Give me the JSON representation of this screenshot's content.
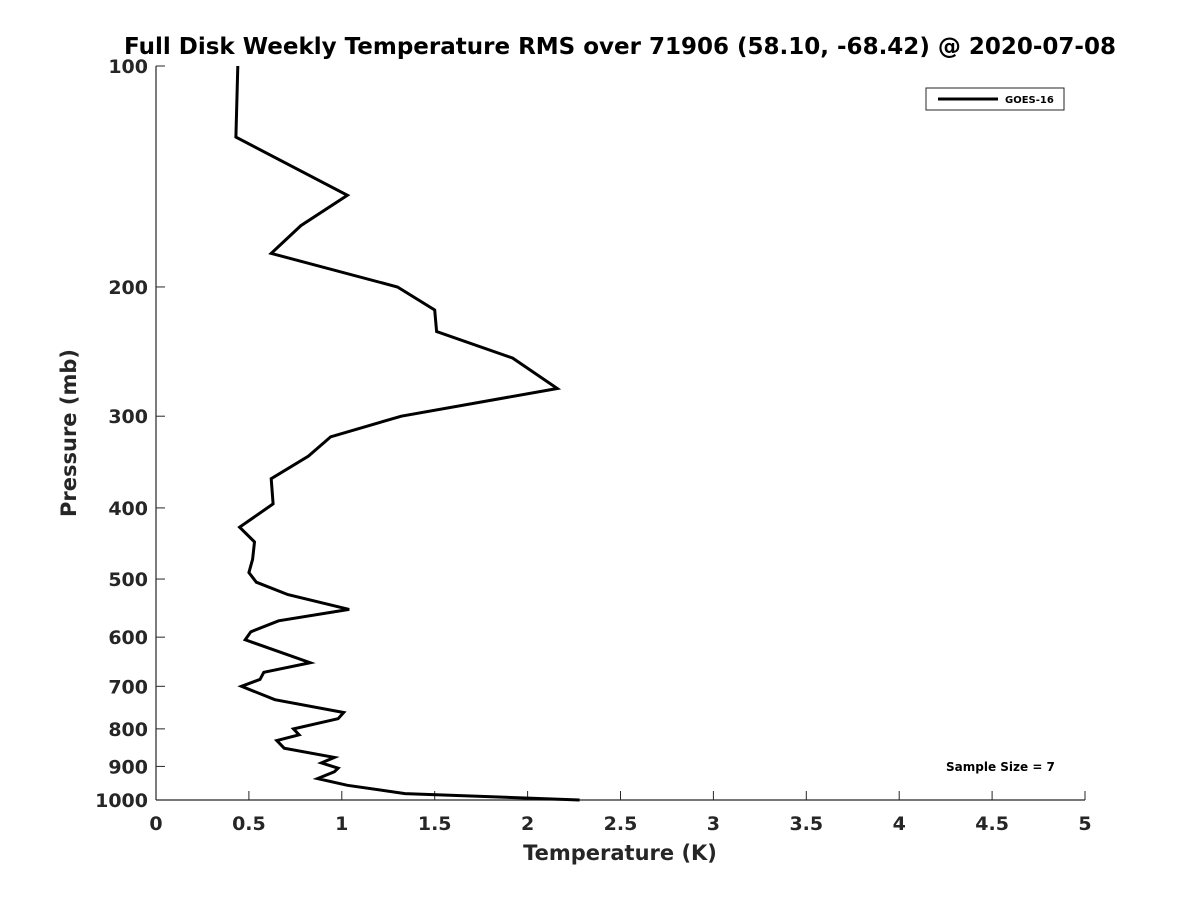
{
  "chart_data": {
    "type": "line",
    "title": "Full Disk Weekly Temperature RMS over 71906 (58.10, -68.42) @ 2020-07-08",
    "xlabel": "Temperature (K)",
    "ylabel": "Pressure (mb)",
    "xlim": [
      0,
      5
    ],
    "ylim": [
      1000,
      100
    ],
    "yscale": "log",
    "y_reversed": true,
    "xticks": [
      0,
      0.5,
      1,
      1.5,
      2,
      2.5,
      3,
      3.5,
      4,
      4.5,
      5
    ],
    "xtick_labels": [
      "0",
      "0.5",
      "1",
      "1.5",
      "2",
      "2.5",
      "3",
      "3.5",
      "4",
      "4.5",
      "5"
    ],
    "yticks": [
      100,
      200,
      300,
      400,
      500,
      600,
      700,
      800,
      900,
      1000
    ],
    "ytick_labels": [
      "100",
      "200",
      "300",
      "400",
      "500",
      "600",
      "700",
      "800",
      "900",
      "1000"
    ],
    "grid": false,
    "legend": {
      "entries": [
        "GOES-16"
      ],
      "placement": "top-right"
    },
    "annotation": "Sample Size = 7",
    "series": [
      {
        "name": "GOES-16",
        "color": "#000000",
        "points": [
          [
            0.44,
            100
          ],
          [
            0.43,
            125
          ],
          [
            1.03,
            150
          ],
          [
            0.78,
            165
          ],
          [
            0.62,
            180
          ],
          [
            1.3,
            200
          ],
          [
            1.5,
            215
          ],
          [
            1.51,
            230
          ],
          [
            1.92,
            250
          ],
          [
            2.16,
            275
          ],
          [
            1.32,
            300
          ],
          [
            0.94,
            320
          ],
          [
            0.82,
            340
          ],
          [
            0.62,
            365
          ],
          [
            0.63,
            395
          ],
          [
            0.45,
            425
          ],
          [
            0.53,
            445
          ],
          [
            0.52,
            470
          ],
          [
            0.5,
            490
          ],
          [
            0.54,
            505
          ],
          [
            0.71,
            525
          ],
          [
            1.04,
            550
          ],
          [
            0.66,
            570
          ],
          [
            0.51,
            590
          ],
          [
            0.48,
            605
          ],
          [
            0.83,
            650
          ],
          [
            0.58,
            670
          ],
          [
            0.56,
            685
          ],
          [
            0.46,
            700
          ],
          [
            0.64,
            730
          ],
          [
            1.01,
            760
          ],
          [
            0.98,
            775
          ],
          [
            0.74,
            800
          ],
          [
            0.77,
            815
          ],
          [
            0.65,
            830
          ],
          [
            0.69,
            850
          ],
          [
            0.96,
            875
          ],
          [
            0.89,
            890
          ],
          [
            0.98,
            905
          ],
          [
            0.96,
            915
          ],
          [
            0.87,
            935
          ],
          [
            1.03,
            955
          ],
          [
            1.34,
            980
          ],
          [
            2.28,
            1000
          ]
        ]
      }
    ]
  }
}
